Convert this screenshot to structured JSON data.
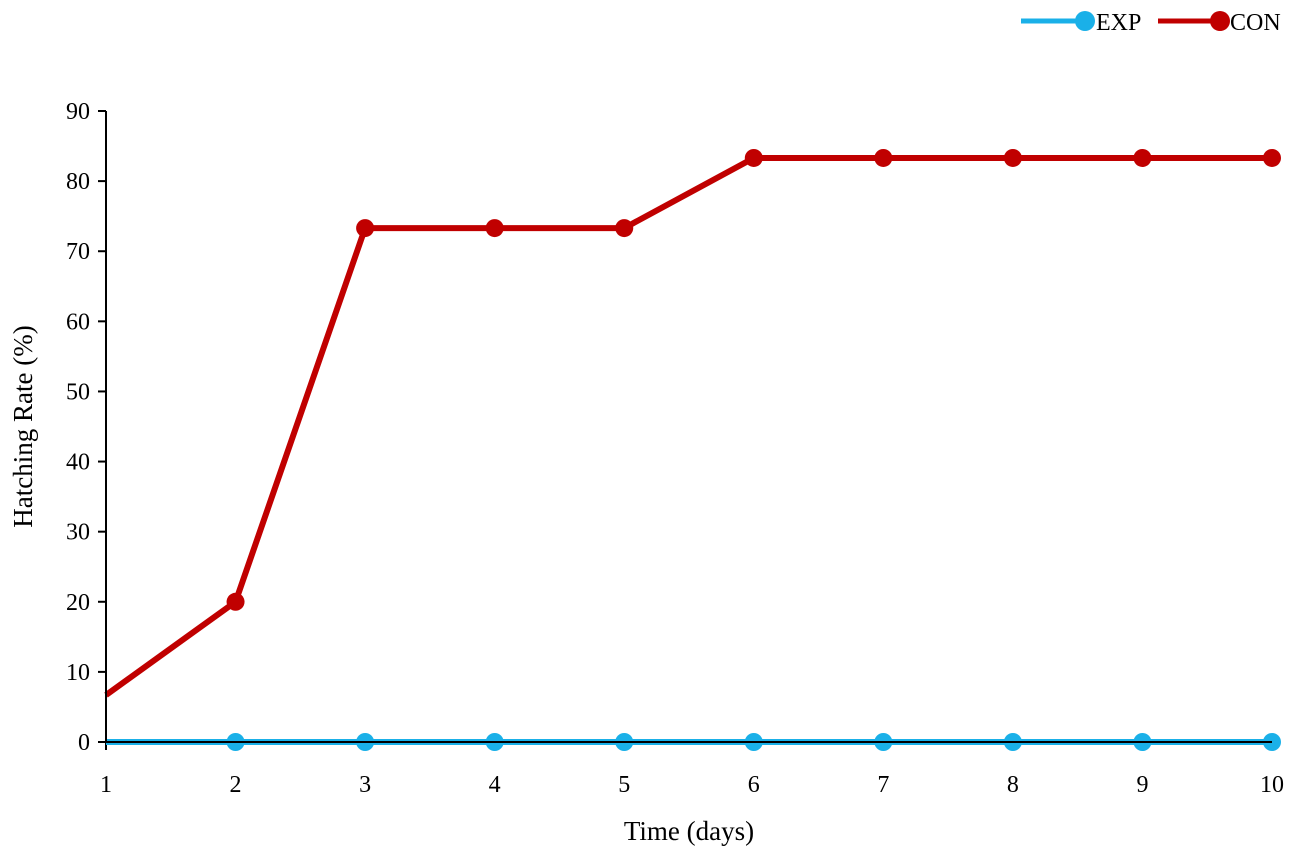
{
  "chart_data": {
    "type": "line",
    "xlabel": "Time (days)",
    "ylabel": "Hatching Rate (%)",
    "x": [
      1,
      2,
      3,
      4,
      5,
      6,
      7,
      8,
      9,
      10
    ],
    "xticks": [
      "1",
      "2",
      "3",
      "4",
      "5",
      "6",
      "7",
      "8",
      "9",
      "10"
    ],
    "yticks": [
      "0",
      "10",
      "20",
      "30",
      "40",
      "50",
      "60",
      "70",
      "80",
      "90"
    ],
    "xlim": [
      1,
      10
    ],
    "ylim": [
      0,
      90
    ],
    "grid": false,
    "legend_position": "top-right",
    "series": [
      {
        "name": "EXP",
        "color": "#1ab0e8",
        "values": [
          0,
          0,
          0,
          0,
          0,
          0,
          0,
          0,
          0,
          0
        ]
      },
      {
        "name": "CON",
        "color": "#c00000",
        "values": [
          6.7,
          20,
          73.3,
          73.3,
          73.3,
          83.3,
          83.3,
          83.3,
          83.3,
          83.3
        ]
      }
    ]
  }
}
